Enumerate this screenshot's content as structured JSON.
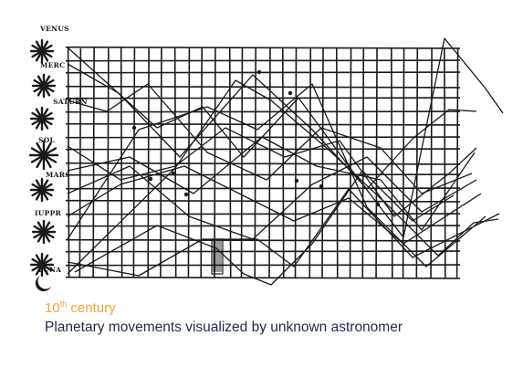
{
  "illustration": {
    "labels": [
      "VENUS",
      "MERC",
      "SATURN",
      "SOL",
      "MARS",
      "IUPPR",
      "LUNA"
    ],
    "colors": {
      "ink": "#1a1a1a",
      "paper": "#ffffff"
    }
  },
  "caption": {
    "century_number": "10",
    "century_suffix": "th",
    "century_word": "century",
    "description": "Planetary movements visualized by unknown astronomer",
    "colors": {
      "century": "#f0a23a",
      "description": "#1f2a44"
    }
  }
}
